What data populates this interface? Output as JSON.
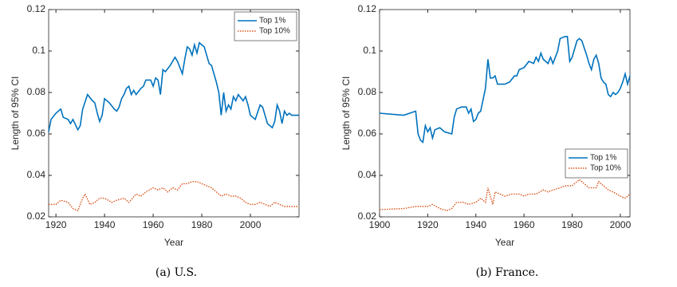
{
  "chart_data": [
    {
      "type": "line",
      "caption": "(a) U.S.",
      "xlabel": "Year",
      "ylabel": "Length of 95% CI",
      "xlim": [
        1917,
        2020
      ],
      "ylim": [
        0.02,
        0.12
      ],
      "xticks": [
        1920,
        1940,
        1960,
        1980,
        2000
      ],
      "yticks": [
        0.02,
        0.04,
        0.06,
        0.08,
        0.1,
        0.12
      ],
      "legend": "upper right",
      "series": [
        {
          "name": "Top 1%",
          "color": "#0072bd",
          "dash": "solid",
          "x": [
            1917,
            1918,
            1920,
            1922,
            1923,
            1925,
            1926,
            1927,
            1929,
            1930,
            1931,
            1933,
            1935,
            1936,
            1937,
            1938,
            1939,
            1940,
            1942,
            1944,
            1945,
            1946,
            1947,
            1948,
            1949,
            1950,
            1951,
            1952,
            1953,
            1955,
            1956,
            1957,
            1959,
            1960,
            1961,
            1962,
            1963,
            1964,
            1965,
            1967,
            1969,
            1970,
            1972,
            1973,
            1974,
            1975,
            1976,
            1977,
            1978,
            1979,
            1980,
            1981,
            1983,
            1984,
            1986,
            1987,
            1988,
            1989,
            1990,
            1991,
            1992,
            1993,
            1994,
            1995,
            1997,
            1998,
            1999,
            2000,
            2002,
            2004,
            2005,
            2007,
            2009,
            2010,
            2011,
            2012,
            2013,
            2014,
            2015,
            2016,
            2017,
            2018,
            2020
          ],
          "values": [
            0.061,
            0.067,
            0.07,
            0.072,
            0.068,
            0.067,
            0.065,
            0.067,
            0.062,
            0.064,
            0.072,
            0.079,
            0.076,
            0.075,
            0.07,
            0.066,
            0.069,
            0.077,
            0.075,
            0.072,
            0.071,
            0.073,
            0.077,
            0.079,
            0.082,
            0.083,
            0.079,
            0.081,
            0.079,
            0.082,
            0.083,
            0.086,
            0.086,
            0.083,
            0.087,
            0.086,
            0.079,
            0.091,
            0.09,
            0.093,
            0.097,
            0.095,
            0.089,
            0.096,
            0.102,
            0.101,
            0.098,
            0.103,
            0.099,
            0.104,
            0.103,
            0.102,
            0.094,
            0.093,
            0.085,
            0.08,
            0.069,
            0.08,
            0.071,
            0.074,
            0.072,
            0.078,
            0.076,
            0.079,
            0.076,
            0.078,
            0.074,
            0.069,
            0.067,
            0.074,
            0.073,
            0.065,
            0.063,
            0.066,
            0.074,
            0.071,
            0.065,
            0.071,
            0.069,
            0.07,
            0.069,
            0.069,
            0.069
          ]
        },
        {
          "name": "Top 10%",
          "color": "#d95319",
          "dash": "dotted",
          "x": [
            1917,
            1920,
            1922,
            1925,
            1927,
            1929,
            1931,
            1932,
            1934,
            1936,
            1938,
            1940,
            1943,
            1945,
            1948,
            1950,
            1953,
            1955,
            1957,
            1960,
            1962,
            1964,
            1966,
            1968,
            1970,
            1972,
            1974,
            1976,
            1978,
            1980,
            1982,
            1984,
            1986,
            1988,
            1990,
            1992,
            1994,
            1996,
            1998,
            2000,
            2002,
            2004,
            2006,
            2008,
            2010,
            2012,
            2014,
            2016,
            2018,
            2020
          ],
          "values": [
            0.026,
            0.026,
            0.028,
            0.027,
            0.024,
            0.023,
            0.029,
            0.031,
            0.026,
            0.027,
            0.029,
            0.029,
            0.027,
            0.028,
            0.029,
            0.027,
            0.031,
            0.03,
            0.032,
            0.034,
            0.033,
            0.034,
            0.032,
            0.034,
            0.033,
            0.036,
            0.036,
            0.037,
            0.037,
            0.036,
            0.035,
            0.034,
            0.032,
            0.03,
            0.031,
            0.03,
            0.03,
            0.029,
            0.027,
            0.026,
            0.026,
            0.027,
            0.026,
            0.025,
            0.027,
            0.026,
            0.025,
            0.025,
            0.025,
            0.025
          ]
        }
      ]
    },
    {
      "type": "line",
      "caption": "(b) France.",
      "xlabel": "Year",
      "ylabel": "Length of 95% CI",
      "xlim": [
        1900,
        2004
      ],
      "ylim": [
        0.02,
        0.12
      ],
      "xticks": [
        1900,
        1920,
        1940,
        1960,
        1980,
        2000
      ],
      "yticks": [
        0.02,
        0.04,
        0.06,
        0.08,
        0.1,
        0.12
      ],
      "legend": "center right",
      "series": [
        {
          "name": "Top 1%",
          "color": "#0072bd",
          "dash": "solid",
          "x": [
            1900,
            1910,
            1915,
            1916,
            1917,
            1918,
            1919,
            1920,
            1921,
            1922,
            1923,
            1925,
            1927,
            1930,
            1931,
            1932,
            1934,
            1936,
            1937,
            1938,
            1939,
            1940,
            1941,
            1942,
            1944,
            1945,
            1946,
            1947,
            1948,
            1949,
            1952,
            1954,
            1956,
            1957,
            1958,
            1960,
            1962,
            1964,
            1965,
            1966,
            1967,
            1968,
            1970,
            1971,
            1972,
            1974,
            1975,
            1977,
            1978,
            1979,
            1980,
            1982,
            1983,
            1984,
            1986,
            1987,
            1988,
            1989,
            1990,
            1991,
            1992,
            1993,
            1994,
            1995,
            1996,
            1997,
            1998,
            1999,
            2000,
            2001,
            2002,
            2003,
            2004
          ],
          "values": [
            0.07,
            0.069,
            0.071,
            0.06,
            0.057,
            0.056,
            0.064,
            0.061,
            0.063,
            0.058,
            0.062,
            0.063,
            0.061,
            0.06,
            0.068,
            0.072,
            0.073,
            0.073,
            0.07,
            0.072,
            0.066,
            0.067,
            0.07,
            0.071,
            0.082,
            0.096,
            0.087,
            0.087,
            0.088,
            0.084,
            0.084,
            0.085,
            0.088,
            0.088,
            0.091,
            0.092,
            0.095,
            0.094,
            0.097,
            0.095,
            0.099,
            0.096,
            0.094,
            0.097,
            0.094,
            0.1,
            0.106,
            0.107,
            0.107,
            0.095,
            0.097,
            0.105,
            0.106,
            0.105,
            0.098,
            0.094,
            0.091,
            0.096,
            0.098,
            0.094,
            0.087,
            0.085,
            0.084,
            0.079,
            0.078,
            0.08,
            0.079,
            0.08,
            0.082,
            0.085,
            0.089,
            0.084,
            0.088
          ]
        },
        {
          "name": "Top 10%",
          "color": "#d95319",
          "dash": "dotted",
          "x": [
            1900,
            1910,
            1915,
            1920,
            1922,
            1925,
            1928,
            1930,
            1932,
            1935,
            1937,
            1940,
            1942,
            1944,
            1945,
            1946,
            1947,
            1948,
            1950,
            1952,
            1955,
            1958,
            1960,
            1962,
            1965,
            1968,
            1970,
            1972,
            1975,
            1977,
            1980,
            1982,
            1983,
            1985,
            1987,
            1990,
            1991,
            1993,
            1995,
            1997,
            2000,
            2002,
            2004
          ],
          "values": [
            0.0235,
            0.024,
            0.025,
            0.025,
            0.026,
            0.024,
            0.023,
            0.024,
            0.027,
            0.027,
            0.026,
            0.027,
            0.029,
            0.027,
            0.034,
            0.03,
            0.026,
            0.032,
            0.031,
            0.03,
            0.031,
            0.031,
            0.03,
            0.031,
            0.031,
            0.033,
            0.032,
            0.033,
            0.034,
            0.035,
            0.035,
            0.037,
            0.038,
            0.036,
            0.034,
            0.034,
            0.037,
            0.035,
            0.033,
            0.032,
            0.03,
            0.029,
            0.031
          ]
        }
      ]
    }
  ]
}
